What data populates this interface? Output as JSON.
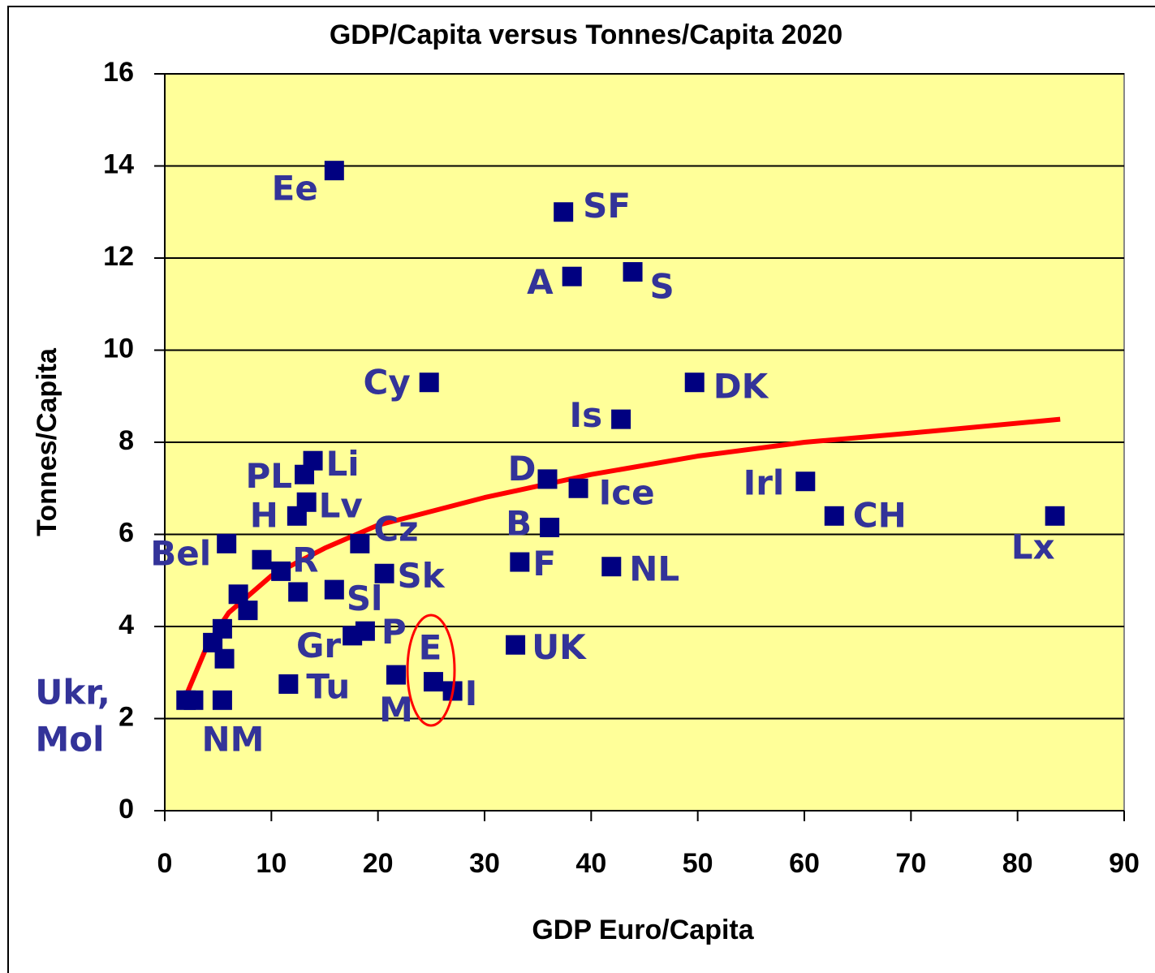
{
  "chart_data": {
    "type": "scatter",
    "title": "GDP/Capita versus Tonnes/Capita 2020",
    "xlabel": "GDP Euro/Capita",
    "ylabel": "Tonnes/Capita",
    "xlim": [
      0,
      90
    ],
    "ylim": [
      0,
      16
    ],
    "xticks": [
      0,
      10,
      20,
      30,
      40,
      50,
      60,
      70,
      80,
      90
    ],
    "yticks": [
      0,
      2,
      4,
      6,
      8,
      10,
      12,
      14,
      16
    ],
    "grid": true,
    "series": [
      {
        "color": "#000080",
        "x": [
          15.9,
          37.4,
          38.2,
          43.9,
          24.8,
          49.7,
          42.8,
          13.9,
          13.1,
          35.9,
          60.1,
          38.8,
          13.3,
          12.4,
          62.8,
          83.5,
          36.1,
          5.8,
          18.3,
          33.3,
          41.9,
          9.1,
          10.9,
          20.6,
          6.9,
          12.5,
          15.9,
          7.8,
          5.4,
          4.5,
          5.6,
          18.8,
          17.6,
          32.9,
          11.6,
          21.7,
          25.2,
          27.0,
          2.0,
          2.7,
          5.4
        ],
        "y": [
          13.9,
          13.0,
          11.6,
          11.7,
          9.3,
          9.3,
          8.5,
          7.6,
          7.3,
          7.2,
          7.15,
          7.0,
          6.7,
          6.4,
          6.4,
          6.4,
          6.15,
          5.8,
          5.8,
          5.4,
          5.3,
          5.45,
          5.2,
          5.15,
          4.7,
          4.75,
          4.8,
          4.35,
          3.95,
          3.65,
          3.3,
          3.9,
          3.8,
          3.6,
          2.75,
          2.95,
          2.8,
          2.6,
          2.4,
          2.4,
          2.4
        ],
        "point_labels": [
          "Ee",
          "SF",
          "A",
          "S",
          "Cy",
          "DK",
          "Is",
          "Li",
          "PL",
          "D",
          "Irl",
          "Ice",
          "Lv",
          "H",
          "CH",
          "Lx",
          "B",
          "Bel",
          "Cz",
          "F",
          "NL",
          null,
          "R",
          "Sk",
          null,
          null,
          "Sl",
          null,
          null,
          null,
          null,
          "P",
          "Gr",
          "UK",
          "Tu",
          "M",
          "E",
          "I",
          "Ukr,",
          "Mol",
          "NM"
        ]
      },
      {
        "type": "line",
        "color": "#ff0000",
        "x": [
          2,
          4,
          6,
          10,
          15,
          20,
          30,
          40,
          50,
          60,
          70,
          84
        ],
        "y": [
          2.5,
          3.6,
          4.3,
          5.1,
          5.7,
          6.2,
          6.8,
          7.3,
          7.7,
          8.0,
          8.2,
          8.5
        ]
      }
    ]
  }
}
